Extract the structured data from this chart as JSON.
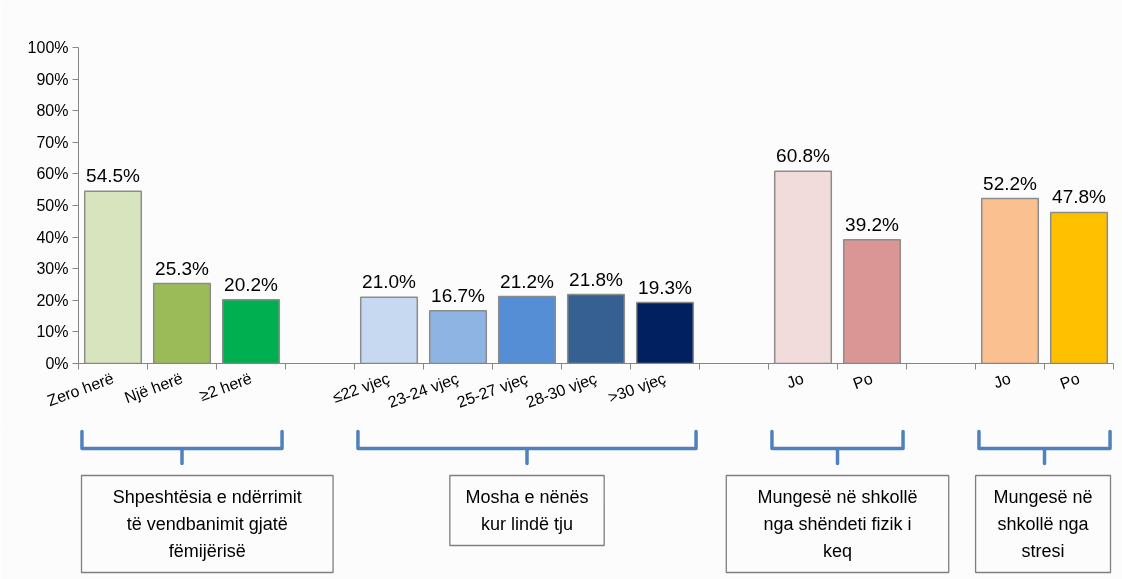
{
  "chart_data": {
    "type": "bar",
    "categories": [
      "Zero herë",
      "Një herë",
      "≥2 herë",
      null,
      "≤22 vjeç",
      "23-24 vjeç",
      "25-27 vjeç",
      "28-30 vjeç",
      ">30 vjeç",
      null,
      "Jo",
      "Po",
      null,
      "Jo",
      "Po"
    ],
    "values": [
      54.5,
      25.3,
      20.2,
      null,
      21.0,
      16.7,
      21.2,
      21.8,
      19.3,
      null,
      60.8,
      39.2,
      null,
      52.2,
      47.8
    ],
    "colors": [
      "#d7e4bd",
      "#9bbb59",
      "#00b050",
      null,
      "#c6d9f1",
      "#8eb4e3",
      "#558ed5",
      "#376092",
      "#002060",
      null,
      "#f2dcdb",
      "#d99694",
      null,
      "#fac090",
      "#ffc000"
    ],
    "value_labels": [
      "54.5%",
      "25.3%",
      "20.2%",
      null,
      "21.0%",
      "16.7%",
      "21.2%",
      "21.8%",
      "19.3%",
      null,
      "60.8%",
      "39.2%",
      null,
      "52.2%",
      "47.8%"
    ],
    "ylim": [
      0,
      100
    ],
    "yticks": [
      {
        "value": 0,
        "label": "0%"
      },
      {
        "value": 10,
        "label": "10%"
      },
      {
        "value": 20,
        "label": "20%"
      },
      {
        "value": 30,
        "label": "30%"
      },
      {
        "value": 40,
        "label": "40%"
      },
      {
        "value": 50,
        "label": "50%"
      },
      {
        "value": 60,
        "label": "60%"
      },
      {
        "value": 70,
        "label": "70%"
      },
      {
        "value": 80,
        "label": "80%"
      },
      {
        "value": 90,
        "label": "90%"
      },
      {
        "value": 100,
        "label": "100%"
      }
    ],
    "annotations": [
      "Shpeshtësia e ndërrimit të vendbanimit gjatë fëmijërisë",
      "Mosha e nënës kur lindë tju",
      "Mungesë në shkollë nga shëndeti fizik i keq",
      "Mungesë në shkollë nga stresi"
    ]
  }
}
